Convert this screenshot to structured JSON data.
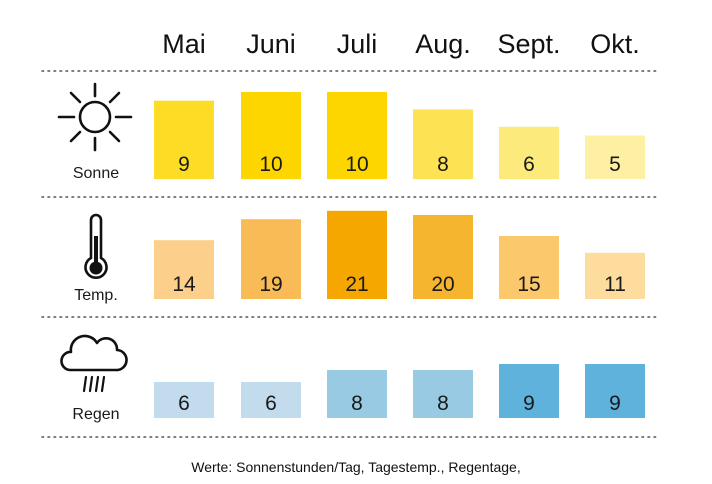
{
  "chart_data": {
    "type": "table",
    "categories": [
      "Mai",
      "Juni",
      "Juli",
      "Aug.",
      "Sept.",
      "Okt."
    ],
    "rows": [
      {
        "label": "Sonne",
        "icon": "sun-icon",
        "values": [
          9,
          10,
          10,
          8,
          6,
          5
        ],
        "colors": [
          "#fddc26",
          "#fdd600",
          "#fdd600",
          "#fde253",
          "#fdea7d",
          "#fef0a3"
        ]
      },
      {
        "label": "Temp.",
        "icon": "thermometer-icon",
        "values": [
          14,
          19,
          21,
          20,
          15,
          11
        ],
        "colors": [
          "#fcd08a",
          "#f9bb55",
          "#f5a700",
          "#f6b52f",
          "#fbc86c",
          "#fddc9e"
        ]
      },
      {
        "label": "Regen",
        "icon": "rain-cloud-icon",
        "values": [
          6,
          6,
          8,
          8,
          9,
          9
        ],
        "colors": [
          "#c2dcee",
          "#c2dcee",
          "#98cbe3",
          "#98cbe3",
          "#5fb2dc",
          "#5fb2dc"
        ]
      }
    ],
    "footnote": "Werte: Sonnenstunden/Tag, Tagestemp., Regentage,"
  }
}
